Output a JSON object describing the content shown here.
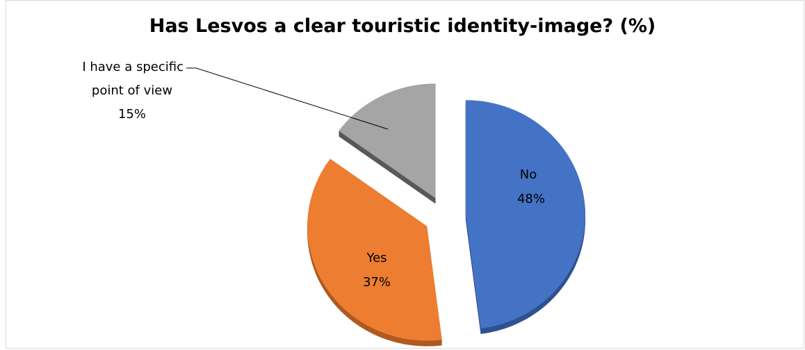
{
  "chart_data": {
    "type": "pie",
    "title": "Has Lesvos a clear touristic identity-image? (%)",
    "slices": [
      {
        "name": "No",
        "value": 48,
        "label": "48%",
        "color": "#4472C4",
        "shadow": "#2F528F",
        "label_color": "#000000"
      },
      {
        "name": "Yes",
        "value": 37,
        "label": "37%",
        "color": "#ED7D31",
        "shadow": "#AE5A21",
        "label_color": "#000000"
      },
      {
        "name": "I have a specific point of view",
        "value": 15,
        "label": "15%",
        "color": "#A5A5A5",
        "shadow": "#595959",
        "label_color": "#000000"
      }
    ],
    "external_label": {
      "lines": [
        "I have a specific",
        "point of view",
        "15%"
      ]
    },
    "style": "3d-exploded",
    "legend": "none"
  }
}
